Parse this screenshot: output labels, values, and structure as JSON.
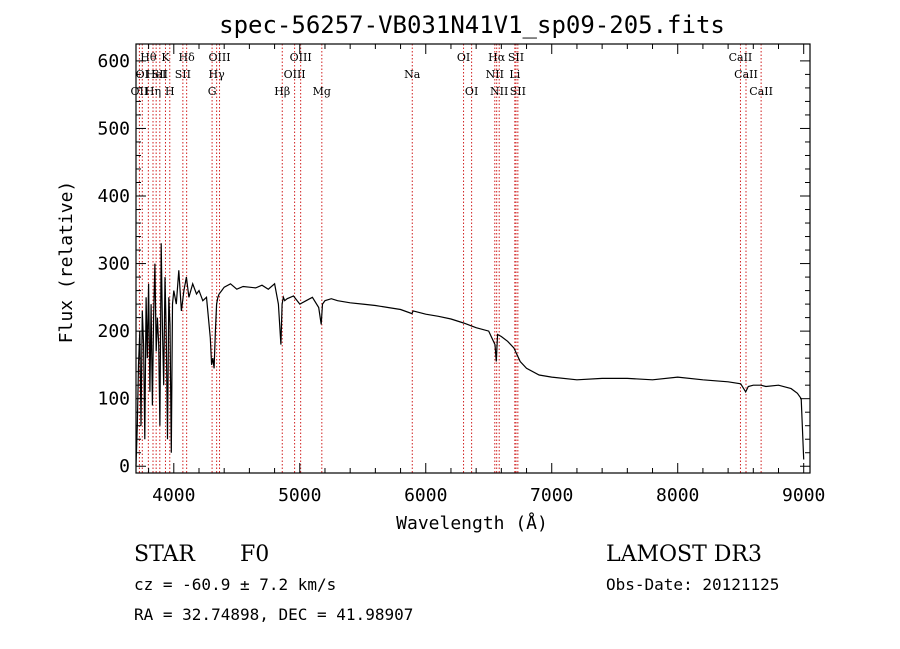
{
  "chart_data": {
    "type": "line",
    "title": "spec-56257-VB031N41V1_sp09-205.fits",
    "xlabel": "Wavelength (Å)",
    "ylabel": "Flux (relative)",
    "xlim": [
      3700,
      9050
    ],
    "ylim": [
      -10,
      625
    ],
    "xticks": [
      4000,
      5000,
      6000,
      7000,
      8000,
      9000
    ],
    "yticks": [
      0,
      100,
      200,
      300,
      400,
      500,
      600
    ],
    "series": [
      {
        "name": "flux",
        "x": [
          3700,
          3710,
          3720,
          3730,
          3740,
          3750,
          3760,
          3770,
          3780,
          3790,
          3800,
          3810,
          3820,
          3830,
          3840,
          3850,
          3860,
          3870,
          3880,
          3890,
          3900,
          3910,
          3920,
          3930,
          3940,
          3950,
          3960,
          3970,
          3980,
          3990,
          4000,
          4020,
          4040,
          4060,
          4080,
          4100,
          4120,
          4150,
          4180,
          4200,
          4230,
          4260,
          4290,
          4300,
          4310,
          4320,
          4330,
          4340,
          4350,
          4360,
          4380,
          4400,
          4450,
          4500,
          4550,
          4600,
          4650,
          4700,
          4750,
          4800,
          4830,
          4850,
          4860,
          4870,
          4880,
          4900,
          4950,
          5000,
          5050,
          5100,
          5150,
          5170,
          5180,
          5200,
          5250,
          5300,
          5400,
          5500,
          5600,
          5700,
          5800,
          5890,
          5900,
          6000,
          6100,
          6200,
          6300,
          6400,
          6500,
          6550,
          6560,
          6565,
          6570,
          6600,
          6650,
          6700,
          6750,
          6800,
          6900,
          7000,
          7200,
          7400,
          7600,
          7800,
          8000,
          8200,
          8400,
          8500,
          8540,
          8560,
          8600,
          8662,
          8700,
          8800,
          8900,
          8950,
          8980,
          9000
        ],
        "values": [
          0,
          60,
          150,
          200,
          60,
          230,
          180,
          40,
          250,
          160,
          270,
          110,
          240,
          90,
          220,
          300,
          170,
          220,
          180,
          60,
          330,
          200,
          120,
          280,
          200,
          40,
          250,
          210,
          20,
          240,
          260,
          240,
          290,
          230,
          260,
          280,
          250,
          270,
          255,
          260,
          245,
          250,
          190,
          150,
          160,
          145,
          200,
          240,
          250,
          255,
          260,
          265,
          270,
          262,
          266,
          265,
          264,
          268,
          262,
          270,
          240,
          180,
          240,
          250,
          245,
          248,
          252,
          240,
          245,
          250,
          235,
          210,
          240,
          245,
          248,
          245,
          242,
          240,
          238,
          235,
          232,
          226,
          230,
          225,
          222,
          218,
          212,
          205,
          200,
          180,
          155,
          175,
          195,
          192,
          185,
          175,
          155,
          145,
          135,
          132,
          128,
          130,
          130,
          128,
          132,
          128,
          125,
          122,
          110,
          118,
          120,
          120,
          118,
          120,
          115,
          108,
          100,
          10
        ]
      }
    ],
    "line_markers": [
      {
        "wave": 3727,
        "row": 2,
        "label": "OII"
      },
      {
        "wave": 3750,
        "row": 1,
        "label": "OI"
      },
      {
        "wave": 3798,
        "row": 0,
        "label": "Hθ"
      },
      {
        "wave": 3835,
        "row": 2,
        "label": "Hη"
      },
      {
        "wave": 3860,
        "row": 1,
        "label": "HeI"
      },
      {
        "wave": 3889,
        "row": 1,
        "label": "SII"
      },
      {
        "wave": 3934,
        "row": 0,
        "label": "K"
      },
      {
        "wave": 3968,
        "row": 2,
        "label": "H"
      },
      {
        "wave": 4102,
        "row": 0,
        "label": "Hδ"
      },
      {
        "wave": 4072,
        "row": 1,
        "label": "SII"
      },
      {
        "wave": 4304,
        "row": 2,
        "label": "G"
      },
      {
        "wave": 4340,
        "row": 1,
        "label": "Hγ"
      },
      {
        "wave": 4363,
        "row": 0,
        "label": "OIII"
      },
      {
        "wave": 4861,
        "row": 2,
        "label": "Hβ"
      },
      {
        "wave": 4959,
        "row": 1,
        "label": "OIII"
      },
      {
        "wave": 5007,
        "row": 0,
        "label": "OIII"
      },
      {
        "wave": 5175,
        "row": 2,
        "label": "Mg"
      },
      {
        "wave": 5893,
        "row": 1,
        "label": "Na"
      },
      {
        "wave": 6300,
        "row": 0,
        "label": "OI"
      },
      {
        "wave": 6364,
        "row": 2,
        "label": "OI"
      },
      {
        "wave": 6548,
        "row": 1,
        "label": "NII"
      },
      {
        "wave": 6563,
        "row": 0,
        "label": "Hα"
      },
      {
        "wave": 6583,
        "row": 2,
        "label": "NII"
      },
      {
        "wave": 6707,
        "row": 1,
        "label": "Li"
      },
      {
        "wave": 6716,
        "row": 0,
        "label": "SII"
      },
      {
        "wave": 6731,
        "row": 2,
        "label": "SII"
      },
      {
        "wave": 8498,
        "row": 0,
        "label": "CaII"
      },
      {
        "wave": 8542,
        "row": 1,
        "label": "CaII"
      },
      {
        "wave": 8662,
        "row": 2,
        "label": "CaII"
      }
    ]
  },
  "info": {
    "class_label": "STAR",
    "subclass": "F0",
    "survey": "LAMOST DR3",
    "redshift_text": "cz = -60.9 ± 7.2 km/s",
    "obs_date_text": "Obs-Date: 20121125",
    "coords_text": "RA =  32.74898, DEC =  41.98907"
  },
  "colors": {
    "axes": "#000000",
    "marker_line": "#d02020",
    "background": "#ffffff"
  }
}
